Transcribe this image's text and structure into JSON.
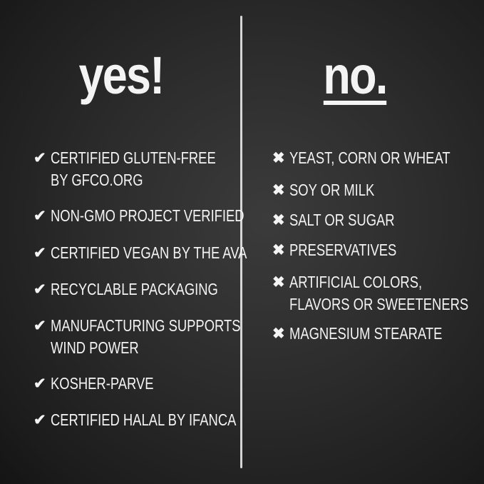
{
  "yes": {
    "title": "yes!",
    "icon": "check-icon",
    "items": [
      {
        "line1": "CERTIFIED GLUTEN-FREE",
        "line2": "BY GFCO.ORG"
      },
      {
        "line1": "NON-GMO PROJECT VERIFIED"
      },
      {
        "line1": "CERTIFIED VEGAN BY THE AVA"
      },
      {
        "line1": "RECYCLABLE PACKAGING"
      },
      {
        "line1": "MANUFACTURING SUPPORTS",
        "line2": "WIND POWER"
      },
      {
        "line1": "KOSHER-PARVE"
      },
      {
        "line1": "CERTIFIED HALAL BY IFANCA"
      }
    ]
  },
  "no": {
    "title": "no.",
    "icon": "x-icon",
    "items": [
      {
        "line1": "YEAST, CORN OR WHEAT"
      },
      {
        "line1": "SOY OR MILK"
      },
      {
        "line1": "SALT OR SUGAR"
      },
      {
        "line1": "PRESERVATIVES"
      },
      {
        "line1": "ARTIFICIAL COLORS,",
        "line2": "FLAVORS OR SWEETENERS"
      },
      {
        "line1": "MAGNESIUM STEARATE"
      }
    ]
  },
  "colors": {
    "background": "#2c2c2c",
    "chalk": "#f4f4f4"
  }
}
